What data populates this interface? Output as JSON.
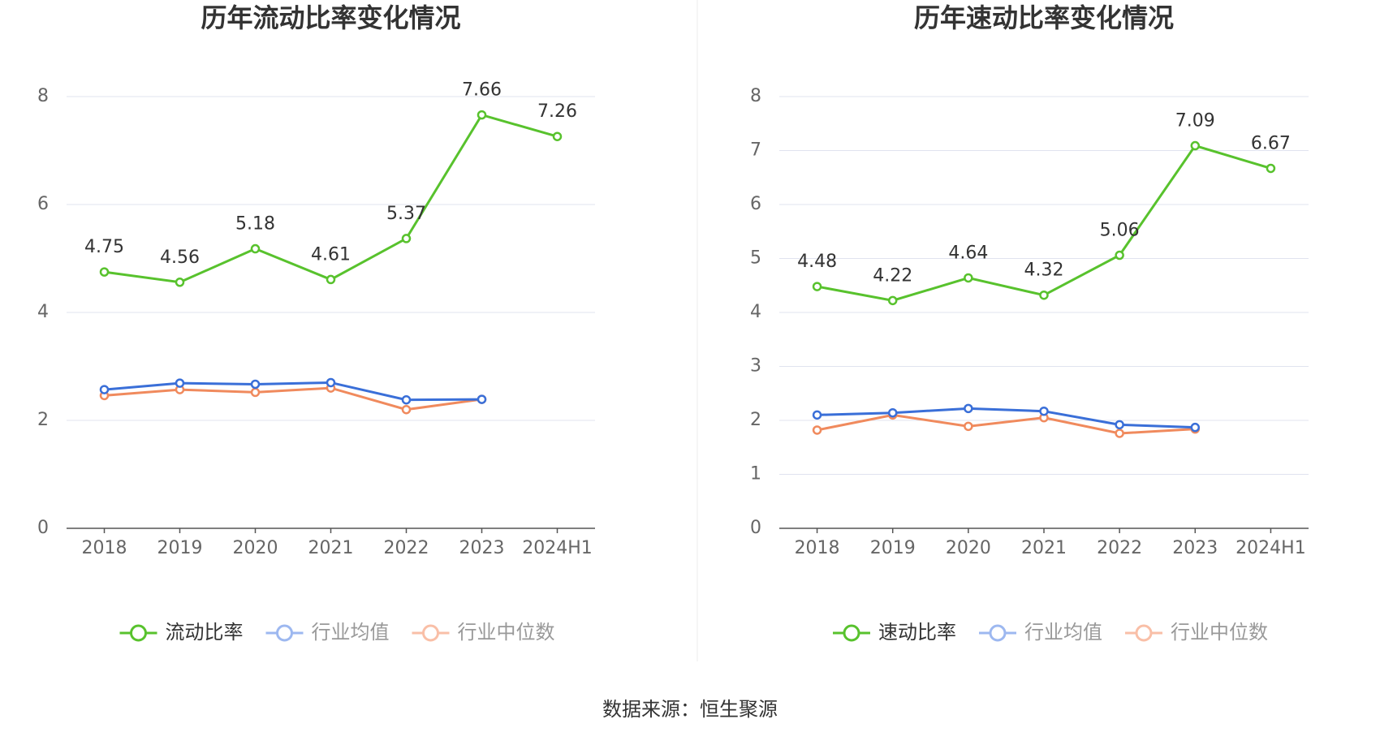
{
  "charts": [
    {
      "type": "line",
      "title": "历年流动比率变化情况",
      "categories": [
        "2018",
        "2019",
        "2020",
        "2021",
        "2022",
        "2023",
        "2024H1"
      ],
      "series": [
        {
          "name": "流动比率",
          "color": "#58c22d",
          "values": [
            4.75,
            4.56,
            5.18,
            4.61,
            5.37,
            7.66,
            7.26
          ]
        },
        {
          "name": "行业均值",
          "color": "#3a6fd8",
          "values": [
            2.57,
            2.69,
            2.67,
            2.7,
            2.38,
            2.39,
            null
          ]
        },
        {
          "name": "行业中位数",
          "color": "#f08a5d",
          "values": [
            2.46,
            2.57,
            2.52,
            2.6,
            2.2,
            2.39,
            null
          ]
        }
      ],
      "ylim": [
        0,
        8
      ],
      "yticks": [
        0,
        2,
        4,
        6,
        8
      ],
      "grid": true
    },
    {
      "type": "line",
      "title": "历年速动比率变化情况",
      "categories": [
        "2018",
        "2019",
        "2020",
        "2021",
        "2022",
        "2023",
        "2024H1"
      ],
      "series": [
        {
          "name": "速动比率",
          "color": "#58c22d",
          "values": [
            4.48,
            4.22,
            4.64,
            4.32,
            5.06,
            7.09,
            6.67
          ]
        },
        {
          "name": "行业均值",
          "color": "#3a6fd8",
          "values": [
            2.1,
            2.14,
            2.22,
            2.17,
            1.92,
            1.87,
            null
          ]
        },
        {
          "name": "行业中位数",
          "color": "#f08a5d",
          "values": [
            1.82,
            2.1,
            1.89,
            2.05,
            1.76,
            1.84,
            null
          ]
        }
      ],
      "ylim": [
        0,
        8
      ],
      "yticks": [
        0,
        1,
        2,
        3,
        4,
        5,
        6,
        7,
        8
      ],
      "grid": true
    }
  ],
  "source": "数据来源：恒生聚源"
}
